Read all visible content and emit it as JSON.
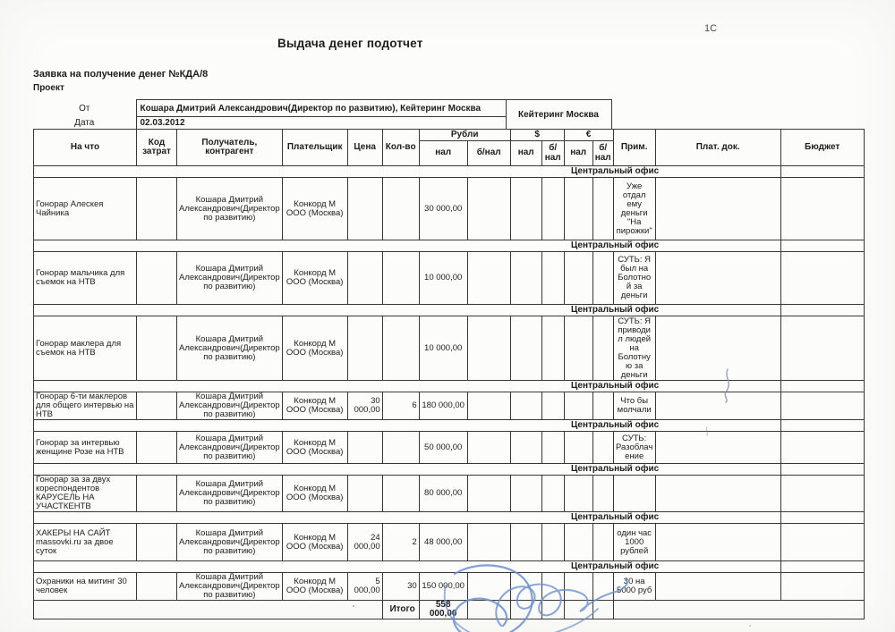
{
  "page": {
    "corner_mark": "1С",
    "title": "Выдача денег подотчет",
    "subtitle": "Заявка на получение денег №КДА/8",
    "project_label": "Проект"
  },
  "meta": {
    "from_label": "От",
    "from_value": "Кошара Дмитрий Александрович(Директор по развитию), Кейтеринг Москва",
    "date_label": "Дата",
    "date_value": "02.03.2012",
    "org_value": "Кейтеринг Москва"
  },
  "table": {
    "headers": {
      "what": "На что",
      "cost_code": "Код затрат",
      "recipient": "Получатель, контрагент",
      "payer": "Плательщик",
      "price": "Цена",
      "qty": "Кол-во",
      "rub_group": "Рубли",
      "usd_group": "$",
      "eur_group": "€",
      "cash": "нал",
      "noncash": "б/нал",
      "note": "Прим.",
      "pay_doc": "Плат. док.",
      "budget": "Бюджет"
    },
    "section_label": "Центральный офис",
    "rows": [
      {
        "what": "Гонорар Алескея Чайника",
        "cost_code": "",
        "recipient": "Кошара Дмитрий Александрович(Директор по развитию)",
        "payer": "Конкорд М ООО (Москва)",
        "price": "",
        "qty": "",
        "rub_cash": "30 000,00",
        "rub_noncash": "",
        "usd_cash": "",
        "usd_noncash": "",
        "eur_cash": "",
        "eur_noncash": "",
        "note": "Уже отдал ему деньги \"На пирожки\"",
        "pay_doc": "",
        "budget": ""
      },
      {
        "what": "Гонорар мальчика для съемок на НТВ",
        "cost_code": "",
        "recipient": "Кошара Дмитрий Александрович(Директор по развитию)",
        "payer": "Конкорд М ООО (Москва)",
        "price": "",
        "qty": "",
        "rub_cash": "10 000,00",
        "rub_noncash": "",
        "usd_cash": "",
        "usd_noncash": "",
        "eur_cash": "",
        "eur_noncash": "",
        "note": "СУТЬ: Я был на Болотной за деньги",
        "pay_doc": "",
        "budget": ""
      },
      {
        "what": "Гонорар маклера для съемок на НТВ",
        "cost_code": "",
        "recipient": "Кошара Дмитрий Александрович(Директор по развитию)",
        "payer": "Конкорд М ООО (Москва)",
        "price": "",
        "qty": "",
        "rub_cash": "10 000,00",
        "rub_noncash": "",
        "usd_cash": "",
        "usd_noncash": "",
        "eur_cash": "",
        "eur_noncash": "",
        "note": "СУТЬ: Я приводил людей на Болотную за деньги",
        "pay_doc": "",
        "budget": ""
      },
      {
        "what": "Гонорар 6-ти маклеров для общего интервью на НТВ",
        "cost_code": "",
        "recipient": "Кошара Дмитрий Александрович(Директор по развитию)",
        "payer": "Конкорд М ООО (Москва)",
        "price": "30 000,00",
        "qty": "6",
        "rub_cash": "180 000,00",
        "rub_noncash": "",
        "usd_cash": "",
        "usd_noncash": "",
        "eur_cash": "",
        "eur_noncash": "",
        "note": "Что бы молчали",
        "pay_doc": "",
        "budget": ""
      },
      {
        "what": "Гонорар за интервью женщине Розе на НТВ",
        "cost_code": "",
        "recipient": "Кошара Дмитрий Александрович(Директор по развитию)",
        "payer": "Конкорд М ООО (Москва)",
        "price": "",
        "qty": "",
        "rub_cash": "50 000,00",
        "rub_noncash": "",
        "usd_cash": "",
        "usd_noncash": "",
        "eur_cash": "",
        "eur_noncash": "",
        "note": "СУТЬ: Разоблачение",
        "pay_doc": "",
        "budget": ""
      },
      {
        "what": "Гонорар за за двух кореспондентов КАРУСЕЛЬ НА УЧАСТКЕНТВ",
        "cost_code": "",
        "recipient": "Кошара Дмитрий Александрович(Директор по развитию)",
        "payer": "Конкорд М ООО (Москва)",
        "price": "",
        "qty": "",
        "rub_cash": "80 000,00",
        "rub_noncash": "",
        "usd_cash": "",
        "usd_noncash": "",
        "eur_cash": "",
        "eur_noncash": "",
        "note": "",
        "pay_doc": "",
        "budget": ""
      },
      {
        "what": "ХАКЕРЫ НА САЙТ massovki.ru за двое суток",
        "cost_code": "",
        "recipient": "Кошара Дмитрий Александрович(Директор по развитию)",
        "payer": "Конкорд М ООО (Москва)",
        "price": "24 000,00",
        "qty": "2",
        "rub_cash": "48 000,00",
        "rub_noncash": "",
        "usd_cash": "",
        "usd_noncash": "",
        "eur_cash": "",
        "eur_noncash": "",
        "note": "один час 1000 рублей",
        "pay_doc": "",
        "budget": ""
      },
      {
        "what": "Охраники на митинг 30 человек",
        "cost_code": "",
        "recipient": "Кошара Дмитрий Александрович(Директор по развитию)",
        "payer": "Конкорд М ООО (Москва)",
        "price": "5 000,00",
        "qty": "30",
        "rub_cash": "150 000,00",
        "rub_noncash": "",
        "usd_cash": "",
        "usd_noncash": "",
        "eur_cash": "",
        "eur_noncash": "",
        "note": "30 на 5000 руб",
        "pay_doc": "",
        "budget": ""
      }
    ],
    "total_label": "Итого",
    "total_value": "558 000,00"
  },
  "colors": {
    "signature_ink": "#6b8fce",
    "pen_mark_ink": "#7e8aa0"
  }
}
